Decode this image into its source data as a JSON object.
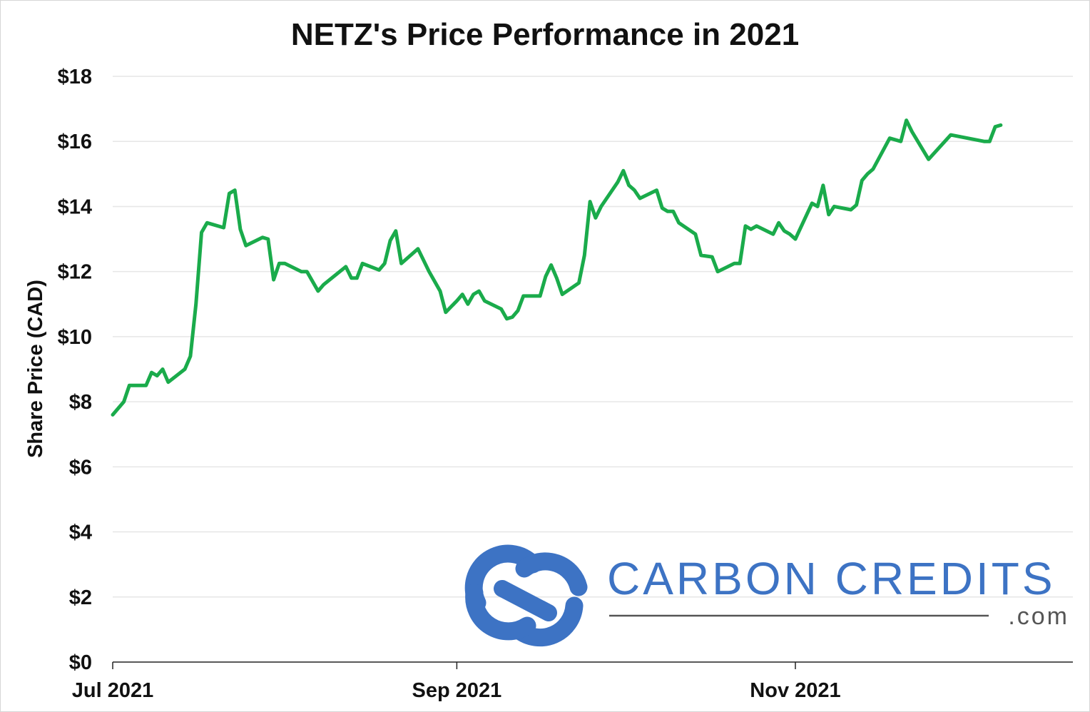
{
  "chart_data": {
    "type": "line",
    "title": "NETZ's Price Performance in 2021",
    "xlabel": "",
    "ylabel": "Share Price (CAD)",
    "ylim": [
      0,
      18
    ],
    "yticks": [
      0,
      2,
      4,
      6,
      8,
      10,
      12,
      14,
      16,
      18
    ],
    "ytick_labels": [
      "$0",
      "$2",
      "$4",
      "$6",
      "$8",
      "$10",
      "$12",
      "$14",
      "$16",
      "$18"
    ],
    "xlim": [
      "2021-07-01",
      "2021-12-21"
    ],
    "xticks": [
      "2021-07-01",
      "2021-09-01",
      "2021-11-01"
    ],
    "xtick_labels": [
      "Jul 2021",
      "Sep 2021",
      "Nov 2021"
    ],
    "grid": "horizontal",
    "legend": "none",
    "series": [
      {
        "color": "#1aab4b",
        "points": [
          [
            "2021-07-01",
            7.6
          ],
          [
            "2021-07-03",
            8.0
          ],
          [
            "2021-07-04",
            8.5
          ],
          [
            "2021-07-07",
            8.5
          ],
          [
            "2021-07-08",
            8.9
          ],
          [
            "2021-07-09",
            8.8
          ],
          [
            "2021-07-10",
            9.0
          ],
          [
            "2021-07-11",
            8.6
          ],
          [
            "2021-07-14",
            9.0
          ],
          [
            "2021-07-15",
            9.4
          ],
          [
            "2021-07-16",
            11.0
          ],
          [
            "2021-07-17",
            13.2
          ],
          [
            "2021-07-18",
            13.5
          ],
          [
            "2021-07-21",
            13.35
          ],
          [
            "2021-07-22",
            14.4
          ],
          [
            "2021-07-23",
            14.5
          ],
          [
            "2021-07-24",
            13.3
          ],
          [
            "2021-07-25",
            12.8
          ],
          [
            "2021-07-28",
            13.05
          ],
          [
            "2021-07-29",
            13.0
          ],
          [
            "2021-07-30",
            11.75
          ],
          [
            "2021-07-31",
            12.25
          ],
          [
            "2021-08-01",
            12.25
          ],
          [
            "2021-08-04",
            12.0
          ],
          [
            "2021-08-05",
            12.0
          ],
          [
            "2021-08-07",
            11.4
          ],
          [
            "2021-08-08",
            11.6
          ],
          [
            "2021-08-12",
            12.15
          ],
          [
            "2021-08-13",
            11.8
          ],
          [
            "2021-08-14",
            11.8
          ],
          [
            "2021-08-15",
            12.25
          ],
          [
            "2021-08-18",
            12.05
          ],
          [
            "2021-08-19",
            12.25
          ],
          [
            "2021-08-20",
            12.95
          ],
          [
            "2021-08-21",
            13.25
          ],
          [
            "2021-08-22",
            12.25
          ],
          [
            "2021-08-25",
            12.7
          ],
          [
            "2021-08-27",
            12.0
          ],
          [
            "2021-08-29",
            11.4
          ],
          [
            "2021-08-30",
            10.75
          ],
          [
            "2021-09-01",
            11.1
          ],
          [
            "2021-09-02",
            11.3
          ],
          [
            "2021-09-03",
            11.0
          ],
          [
            "2021-09-04",
            11.3
          ],
          [
            "2021-09-05",
            11.4
          ],
          [
            "2021-09-06",
            11.1
          ],
          [
            "2021-09-09",
            10.85
          ],
          [
            "2021-09-10",
            10.55
          ],
          [
            "2021-09-11",
            10.6
          ],
          [
            "2021-09-12",
            10.8
          ],
          [
            "2021-09-13",
            11.25
          ],
          [
            "2021-09-16",
            11.25
          ],
          [
            "2021-09-17",
            11.85
          ],
          [
            "2021-09-18",
            12.2
          ],
          [
            "2021-09-19",
            11.8
          ],
          [
            "2021-09-20",
            11.3
          ],
          [
            "2021-09-23",
            11.65
          ],
          [
            "2021-09-24",
            12.5
          ],
          [
            "2021-09-25",
            14.15
          ],
          [
            "2021-09-26",
            13.65
          ],
          [
            "2021-09-27",
            14.0
          ],
          [
            "2021-09-30",
            14.75
          ],
          [
            "2021-10-01",
            15.1
          ],
          [
            "2021-10-02",
            14.65
          ],
          [
            "2021-10-03",
            14.5
          ],
          [
            "2021-10-04",
            14.25
          ],
          [
            "2021-10-07",
            14.5
          ],
          [
            "2021-10-08",
            13.95
          ],
          [
            "2021-10-09",
            13.85
          ],
          [
            "2021-10-10",
            13.85
          ],
          [
            "2021-10-11",
            13.5
          ],
          [
            "2021-10-14",
            13.15
          ],
          [
            "2021-10-15",
            12.5
          ],
          [
            "2021-10-17",
            12.45
          ],
          [
            "2021-10-18",
            12.0
          ],
          [
            "2021-10-21",
            12.25
          ],
          [
            "2021-10-22",
            12.25
          ],
          [
            "2021-10-23",
            13.4
          ],
          [
            "2021-10-24",
            13.3
          ],
          [
            "2021-10-25",
            13.4
          ],
          [
            "2021-10-28",
            13.15
          ],
          [
            "2021-10-29",
            13.5
          ],
          [
            "2021-10-30",
            13.25
          ],
          [
            "2021-10-31",
            13.15
          ],
          [
            "2021-11-01",
            13.0
          ],
          [
            "2021-11-04",
            14.1
          ],
          [
            "2021-11-05",
            14.0
          ],
          [
            "2021-11-06",
            14.65
          ],
          [
            "2021-11-07",
            13.75
          ],
          [
            "2021-11-08",
            14.0
          ],
          [
            "2021-11-11",
            13.9
          ],
          [
            "2021-11-12",
            14.05
          ],
          [
            "2021-11-13",
            14.8
          ],
          [
            "2021-11-14",
            15.0
          ],
          [
            "2021-11-15",
            15.15
          ],
          [
            "2021-11-18",
            16.1
          ],
          [
            "2021-11-20",
            16.0
          ],
          [
            "2021-11-21",
            16.65
          ],
          [
            "2021-11-22",
            16.3
          ],
          [
            "2021-11-25",
            15.45
          ],
          [
            "2021-11-29",
            16.2
          ],
          [
            "2021-12-05",
            16.0
          ],
          [
            "2021-12-06",
            16.0
          ],
          [
            "2021-12-07",
            16.45
          ],
          [
            "2021-12-08",
            16.5
          ]
        ]
      }
    ]
  },
  "watermark": {
    "brand": "CARBON CREDITS",
    "suffix": ".com",
    "color": "#3d73c4",
    "line_color": "#555555",
    "icon": "carbon-credits-logo-icon"
  }
}
